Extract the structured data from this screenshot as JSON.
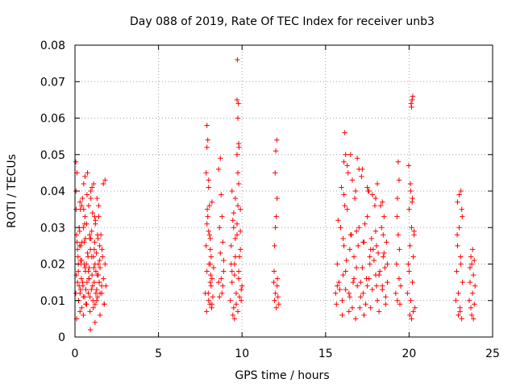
{
  "chart_data": {
    "type": "scatter",
    "title": "Day 088 of 2019, Rate Of TEC Index for receiver unb3",
    "xlabel": "GPS time / hours",
    "ylabel": "ROTI / TECUs",
    "xlim": [
      0,
      25
    ],
    "ylim": [
      0,
      0.08
    ],
    "x_ticks": [
      0,
      5,
      10,
      15,
      20,
      25
    ],
    "y_ticks": [
      0,
      0.01,
      0.02,
      0.03,
      0.04,
      0.05,
      0.06,
      0.07,
      0.08
    ],
    "x_tick_labels": [
      "0",
      "5",
      "10",
      "15",
      "20",
      "25"
    ],
    "y_tick_labels": [
      "0",
      "0.01",
      "0.02",
      "0.03",
      "0.04",
      "0.05",
      "0.06",
      "0.07",
      "0.08"
    ],
    "grid": true,
    "marker": "+",
    "color": "#ff0000",
    "series": [
      {
        "x": [
          0.05,
          0.1,
          0.12,
          0.15,
          0.18,
          0.2,
          0.22,
          0.25,
          0.28,
          0.3,
          0.32,
          0.35,
          0.38,
          0.4,
          0.42,
          0.45,
          0.48,
          0.5,
          0.52,
          0.55,
          0.58,
          0.6,
          0.62,
          0.65,
          0.68,
          0.7,
          0.72,
          0.75,
          0.78,
          0.8,
          0.82,
          0.85,
          0.88,
          0.9,
          0.92,
          0.95,
          0.98,
          1.0,
          1.02,
          1.05,
          1.08,
          1.1,
          1.12,
          1.15,
          1.18,
          1.2,
          1.22,
          1.25,
          1.28,
          1.3,
          1.32,
          1.35,
          1.38,
          1.4,
          1.42,
          1.45,
          1.48,
          1.5,
          1.55,
          1.6,
          1.65,
          1.7,
          1.75,
          1.8,
          1.85,
          0.1,
          0.3,
          0.5,
          0.7,
          0.9,
          1.1,
          1.3,
          1.5,
          0.2,
          0.4,
          0.6,
          0.8,
          1.0,
          1.2,
          1.4,
          0.15,
          0.35,
          0.55,
          0.75,
          0.95,
          1.15,
          1.35,
          0.25,
          0.45,
          0.65,
          0.85,
          1.05,
          1.25,
          1.45,
          1.7,
          1.8,
          0.08,
          0.3,
          0.52,
          0.72,
          1.02,
          1.22,
          1.42,
          1.62,
          0.12,
          0.33,
          0.63,
          0.83,
          1.13,
          1.33,
          0.28,
          0.58,
          0.88,
          1.18,
          1.48,
          0.05,
          0.06,
          0.07,
          0.4,
          0.6,
          0.95,
          0.5,
          0.92,
          1.2,
          1.5,
          1.75,
          0.33,
          1.6
        ],
        "y": [
          0.012,
          0.028,
          0.045,
          0.015,
          0.022,
          0.018,
          0.01,
          0.03,
          0.025,
          0.012,
          0.035,
          0.02,
          0.016,
          0.008,
          0.026,
          0.038,
          0.014,
          0.03,
          0.042,
          0.02,
          0.011,
          0.033,
          0.027,
          0.009,
          0.02,
          0.031,
          0.015,
          0.045,
          0.022,
          0.012,
          0.036,
          0.019,
          0.028,
          0.007,
          0.024,
          0.04,
          0.013,
          0.029,
          0.017,
          0.034,
          0.01,
          0.022,
          0.042,
          0.015,
          0.026,
          0.009,
          0.031,
          0.018,
          0.023,
          0.013,
          0.038,
          0.011,
          0.027,
          0.02,
          0.033,
          0.015,
          0.025,
          0.019,
          0.028,
          0.012,
          0.022,
          0.016,
          0.009,
          0.02,
          0.014,
          0.005,
          0.007,
          0.006,
          0.009,
          0.011,
          0.008,
          0.01,
          0.012,
          0.02,
          0.021,
          0.019,
          0.018,
          0.022,
          0.02,
          0.017,
          0.024,
          0.025,
          0.026,
          0.023,
          0.027,
          0.024,
          0.028,
          0.014,
          0.015,
          0.013,
          0.016,
          0.014,
          0.012,
          0.015,
          0.042,
          0.043,
          0.017,
          0.037,
          0.035,
          0.039,
          0.041,
          0.032,
          0.036,
          0.024,
          0.026,
          0.021,
          0.018,
          0.016,
          0.019,
          0.017,
          0.029,
          0.031,
          0.027,
          0.033,
          0.021,
          0.048,
          0.04,
          0.035,
          0.036,
          0.044,
          0.038,
          0.011,
          0.002,
          0.004,
          0.006,
          0.009,
          0.013,
          0.014
        ]
      },
      {
        "x": [
          7.8,
          7.85,
          7.9,
          7.95,
          8.0,
          8.05,
          8.1,
          8.15,
          8.2,
          8.25,
          8.3,
          7.85,
          7.9,
          7.95,
          8.0,
          8.05,
          8.1,
          8.15,
          8.2,
          8.6,
          8.65,
          8.7,
          8.75,
          8.8,
          8.85,
          8.9,
          8.6,
          8.7,
          8.8,
          8.9,
          7.9,
          8.0,
          8.1,
          8.2,
          7.88,
          7.98,
          8.08,
          8.18,
          8.65,
          8.75,
          8.85,
          7.9,
          8.0,
          8.1,
          7.92,
          8.02,
          8.12
        ],
        "y": [
          0.012,
          0.025,
          0.018,
          0.033,
          0.01,
          0.028,
          0.015,
          0.022,
          0.037,
          0.011,
          0.019,
          0.045,
          0.052,
          0.054,
          0.043,
          0.036,
          0.02,
          0.014,
          0.009,
          0.015,
          0.03,
          0.023,
          0.039,
          0.012,
          0.026,
          0.018,
          0.046,
          0.049,
          0.033,
          0.021,
          0.058,
          0.041,
          0.027,
          0.016,
          0.007,
          0.012,
          0.009,
          0.008,
          0.011,
          0.016,
          0.014,
          0.031,
          0.029,
          0.024,
          0.035,
          0.02,
          0.017
        ]
      },
      {
        "x": [
          9.3,
          9.35,
          9.4,
          9.45,
          9.5,
          9.55,
          9.6,
          9.65,
          9.7,
          9.75,
          9.8,
          9.85,
          9.9,
          9.95,
          10.0,
          9.4,
          9.5,
          9.6,
          9.7,
          9.8,
          9.9,
          9.45,
          9.55,
          9.65,
          9.75,
          9.85,
          9.95,
          9.7,
          9.75,
          9.8,
          9.72,
          9.78,
          9.82,
          9.4,
          9.6,
          9.8,
          9.5,
          9.7,
          9.9,
          9.35,
          9.55,
          9.75
        ],
        "y": [
          0.01,
          0.025,
          0.015,
          0.032,
          0.008,
          0.02,
          0.038,
          0.012,
          0.028,
          0.045,
          0.018,
          0.022,
          0.035,
          0.01,
          0.014,
          0.04,
          0.03,
          0.027,
          0.05,
          0.042,
          0.024,
          0.006,
          0.005,
          0.009,
          0.007,
          0.011,
          0.013,
          0.065,
          0.06,
          0.053,
          0.076,
          0.064,
          0.052,
          0.018,
          0.022,
          0.016,
          0.034,
          0.031,
          0.029,
          0.02,
          0.017,
          0.036
        ]
      },
      {
        "x": [
          11.9,
          11.95,
          12.0,
          12.05,
          12.1,
          12.15,
          12.2,
          11.95,
          12.0,
          12.05,
          12.1,
          11.98,
          12.02,
          12.08,
          11.92,
          12.12
        ],
        "y": [
          0.015,
          0.01,
          0.012,
          0.008,
          0.014,
          0.011,
          0.009,
          0.025,
          0.03,
          0.033,
          0.038,
          0.045,
          0.051,
          0.054,
          0.018,
          0.016
        ]
      },
      {
        "x": [
          15.6,
          15.7,
          15.8,
          15.9,
          16.0,
          16.1,
          16.2,
          16.3,
          16.4,
          16.5,
          16.6,
          16.7,
          16.8,
          16.9,
          17.0,
          17.1,
          17.2,
          17.3,
          17.4,
          17.5,
          17.6,
          17.7,
          17.8,
          17.9,
          18.0,
          18.1,
          18.2,
          18.3,
          18.4,
          18.5,
          18.6,
          18.7,
          15.65,
          15.85,
          16.05,
          16.25,
          16.45,
          16.65,
          16.85,
          17.05,
          17.25,
          17.45,
          17.65,
          17.85,
          18.05,
          18.25,
          18.45,
          18.65,
          15.75,
          16.15,
          16.55,
          16.95,
          17.35,
          17.75,
          18.15,
          18.55,
          15.95,
          16.35,
          16.75,
          17.15,
          17.55,
          17.95,
          18.35,
          16.1,
          16.2,
          16.3,
          16.6,
          16.9,
          17.2,
          17.5,
          17.8,
          18.1,
          18.4,
          16.0,
          16.4,
          16.8,
          17.3,
          17.7,
          18.2,
          18.6,
          16.15,
          16.5,
          17.0,
          17.6,
          18.0,
          18.5,
          15.7,
          16.2,
          16.7,
          17.1,
          17.5,
          18.0,
          18.4,
          18.7,
          16.05,
          16.45,
          16.85,
          17.25,
          17.65,
          18.05,
          18.45,
          16.1
        ],
        "y": [
          0.012,
          0.02,
          0.015,
          0.03,
          0.01,
          0.025,
          0.018,
          0.035,
          0.012,
          0.028,
          0.008,
          0.022,
          0.04,
          0.014,
          0.03,
          0.011,
          0.019,
          0.026,
          0.009,
          0.033,
          0.016,
          0.024,
          0.013,
          0.021,
          0.029,
          0.01,
          0.017,
          0.036,
          0.014,
          0.023,
          0.011,
          0.02,
          0.009,
          0.013,
          0.017,
          0.021,
          0.011,
          0.015,
          0.019,
          0.008,
          0.012,
          0.016,
          0.02,
          0.024,
          0.014,
          0.018,
          0.022,
          0.026,
          0.032,
          0.036,
          0.028,
          0.025,
          0.031,
          0.027,
          0.023,
          0.019,
          0.041,
          0.045,
          0.038,
          0.044,
          0.04,
          0.036,
          0.03,
          0.048,
          0.05,
          0.047,
          0.043,
          0.049,
          0.046,
          0.041,
          0.039,
          0.042,
          0.037,
          0.006,
          0.007,
          0.005,
          0.006,
          0.008,
          0.007,
          0.009,
          0.056,
          0.05,
          0.046,
          0.04,
          0.038,
          0.033,
          0.014,
          0.013,
          0.016,
          0.015,
          0.014,
          0.017,
          0.013,
          0.015,
          0.027,
          0.024,
          0.029,
          0.026,
          0.022,
          0.025,
          0.028,
          0.039
        ]
      },
      {
        "x": [
          19.2,
          19.25,
          19.3,
          19.35,
          19.4,
          19.45,
          19.5,
          19.3,
          19.4,
          19.35,
          19.28,
          19.42
        ],
        "y": [
          0.012,
          0.02,
          0.01,
          0.028,
          0.016,
          0.009,
          0.014,
          0.038,
          0.043,
          0.048,
          0.033,
          0.024
        ]
      },
      {
        "x": [
          19.9,
          19.95,
          20.0,
          20.05,
          20.1,
          20.15,
          20.2,
          20.25,
          20.3,
          20.35,
          20.0,
          20.1,
          20.2,
          20.3,
          20.05,
          20.15,
          20.25,
          19.98,
          20.08,
          20.18,
          20.12,
          20.22,
          20.15,
          20.18
        ],
        "y": [
          0.012,
          0.02,
          0.018,
          0.025,
          0.01,
          0.03,
          0.015,
          0.022,
          0.028,
          0.008,
          0.035,
          0.04,
          0.038,
          0.029,
          0.006,
          0.005,
          0.007,
          0.047,
          0.042,
          0.037,
          0.064,
          0.066,
          0.063,
          0.065
        ]
      },
      {
        "x": [
          22.8,
          22.85,
          22.9,
          22.95,
          23.0,
          23.05,
          23.1,
          23.15,
          23.2,
          22.9,
          23.0,
          23.1,
          22.95,
          23.05,
          23.15,
          22.88,
          23.08,
          23.18
        ],
        "y": [
          0.01,
          0.018,
          0.025,
          0.012,
          0.03,
          0.008,
          0.02,
          0.035,
          0.015,
          0.037,
          0.039,
          0.04,
          0.006,
          0.007,
          0.005,
          0.028,
          0.022,
          0.033
        ]
      },
      {
        "x": [
          23.6,
          23.65,
          23.7,
          23.75,
          23.8,
          23.85,
          23.9,
          23.95,
          23.7,
          23.8,
          23.9,
          23.75,
          23.85,
          23.65
        ],
        "y": [
          0.01,
          0.015,
          0.008,
          0.02,
          0.012,
          0.017,
          0.009,
          0.014,
          0.022,
          0.024,
          0.021,
          0.006,
          0.005,
          0.019
        ]
      }
    ]
  }
}
